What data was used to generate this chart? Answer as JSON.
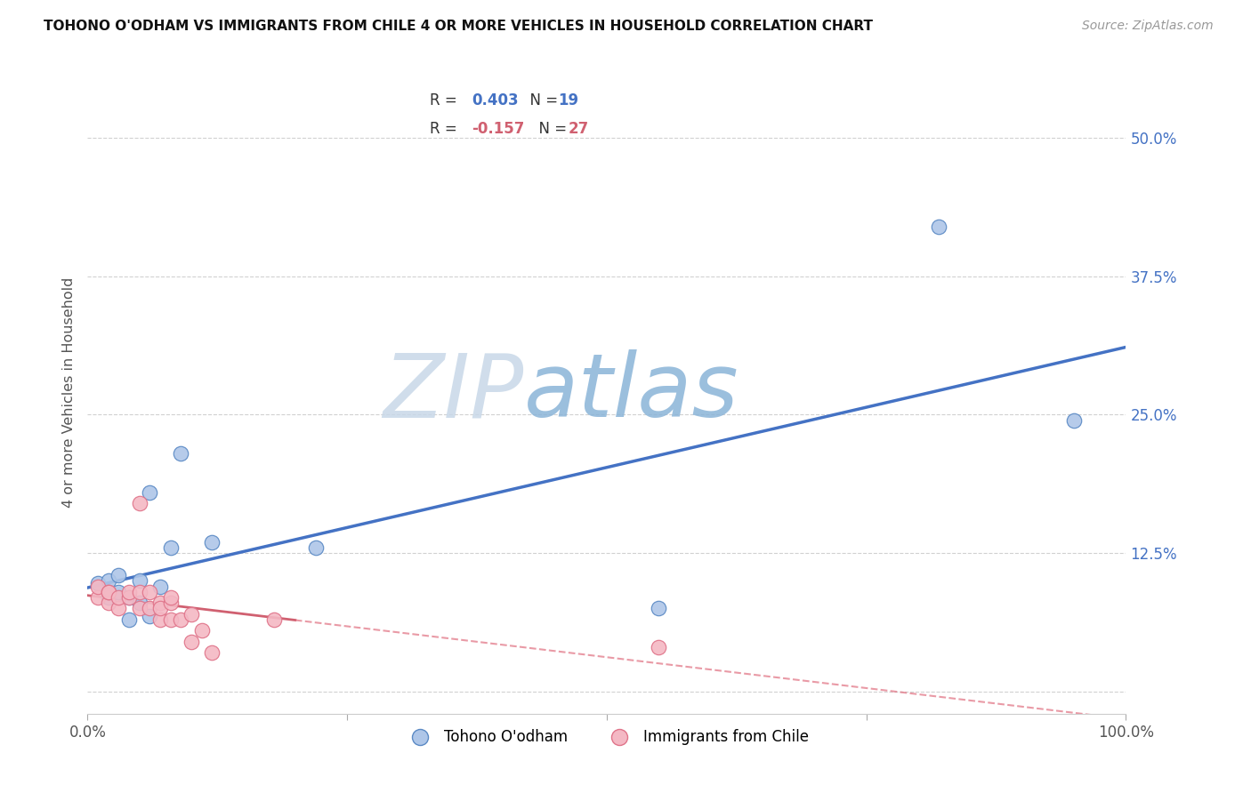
{
  "title": "TOHONO O'ODHAM VS IMMIGRANTS FROM CHILE 4 OR MORE VEHICLES IN HOUSEHOLD CORRELATION CHART",
  "source": "Source: ZipAtlas.com",
  "ylabel": "4 or more Vehicles in Household",
  "xlim": [
    0,
    1.0
  ],
  "ylim": [
    -0.02,
    0.56
  ],
  "xticks": [
    0.0,
    1.0
  ],
  "xticklabels": [
    "0.0%",
    "100.0%"
  ],
  "yticks": [
    0.0,
    0.125,
    0.25,
    0.375,
    0.5
  ],
  "yticklabels": [
    "",
    "12.5%",
    "25.0%",
    "37.5%",
    "50.0%"
  ],
  "ytick_color": "#4472c4",
  "blue_R": 0.403,
  "blue_N": 19,
  "pink_R": -0.157,
  "pink_N": 27,
  "blue_color": "#aec6e8",
  "pink_color": "#f4b8c4",
  "blue_edge_color": "#5b8ac5",
  "pink_edge_color": "#e0748a",
  "blue_line_color": "#4472c4",
  "pink_line_color": "#e07080",
  "pink_line_solid_color": "#d06070",
  "legend_blue_label": "Tohono O'odham",
  "legend_pink_label": "Immigrants from Chile",
  "watermark_zip": "ZIP",
  "watermark_atlas": "atlas",
  "grid_color": "#cccccc",
  "blue_scatter_x": [
    0.01,
    0.02,
    0.02,
    0.03,
    0.03,
    0.04,
    0.04,
    0.05,
    0.05,
    0.06,
    0.06,
    0.07,
    0.08,
    0.09,
    0.12,
    0.22,
    0.55,
    0.82,
    0.95
  ],
  "blue_scatter_y": [
    0.098,
    0.1,
    0.085,
    0.09,
    0.105,
    0.085,
    0.065,
    0.1,
    0.08,
    0.068,
    0.18,
    0.095,
    0.13,
    0.215,
    0.135,
    0.13,
    0.075,
    0.42,
    0.245
  ],
  "pink_scatter_x": [
    0.01,
    0.01,
    0.02,
    0.02,
    0.02,
    0.03,
    0.03,
    0.04,
    0.04,
    0.05,
    0.05,
    0.05,
    0.06,
    0.06,
    0.07,
    0.07,
    0.07,
    0.08,
    0.08,
    0.08,
    0.09,
    0.1,
    0.1,
    0.11,
    0.12,
    0.18,
    0.55
  ],
  "pink_scatter_y": [
    0.085,
    0.095,
    0.08,
    0.09,
    0.09,
    0.075,
    0.085,
    0.085,
    0.09,
    0.09,
    0.17,
    0.075,
    0.09,
    0.075,
    0.08,
    0.065,
    0.075,
    0.08,
    0.065,
    0.085,
    0.065,
    0.07,
    0.045,
    0.055,
    0.035,
    0.065,
    0.04
  ]
}
